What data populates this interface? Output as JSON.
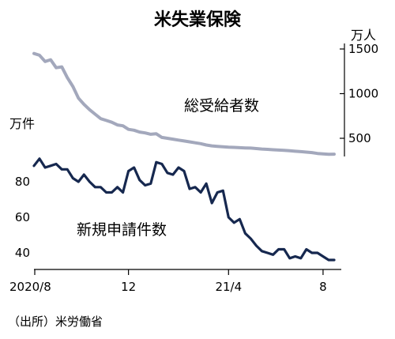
{
  "chart_data": [
    {
      "type": "line",
      "title": "米失業保険",
      "ylabel": "万人",
      "yaxis_side": "right",
      "ylim": [
        300,
        1500
      ],
      "yticks": [
        500,
        1000,
        1500
      ],
      "colors": {
        "line": "#a3a8bc"
      },
      "series": [
        {
          "name": "総受給者数",
          "values": [
            1450,
            1430,
            1360,
            1380,
            1290,
            1300,
            1180,
            1080,
            950,
            880,
            820,
            770,
            720,
            700,
            680,
            650,
            640,
            600,
            590,
            570,
            560,
            545,
            550,
            510,
            500,
            490,
            480,
            470,
            460,
            450,
            440,
            425,
            415,
            410,
            405,
            400,
            398,
            395,
            392,
            390,
            385,
            380,
            376,
            372,
            368,
            365,
            360,
            355,
            350,
            345,
            340,
            330,
            325,
            320,
            322
          ]
        }
      ]
    },
    {
      "type": "line",
      "ylabel": "万件",
      "yaxis_side": "left",
      "ylim": [
        35,
        95
      ],
      "yticks": [
        40,
        60,
        80
      ],
      "colors": {
        "line": "#16284f"
      },
      "series": [
        {
          "name": "新規申請件数",
          "values": [
            89,
            93,
            88,
            89,
            90,
            87,
            87,
            82,
            80,
            84,
            80,
            77,
            77,
            74,
            74,
            77,
            74,
            86,
            88,
            81,
            78,
            79,
            91,
            90,
            85,
            84,
            88,
            86,
            76,
            77,
            74,
            79,
            68,
            74,
            75,
            60,
            57,
            59,
            51,
            48,
            44,
            41,
            40,
            39,
            42,
            42,
            37,
            38,
            37,
            42,
            40,
            40,
            38,
            36,
            36
          ]
        }
      ]
    }
  ],
  "x_axis": {
    "tick_labels": [
      "2020/8",
      "12",
      "21/4",
      "8"
    ],
    "tick_index": [
      0,
      17,
      35,
      52
    ]
  },
  "source": "（出所）米労働省"
}
